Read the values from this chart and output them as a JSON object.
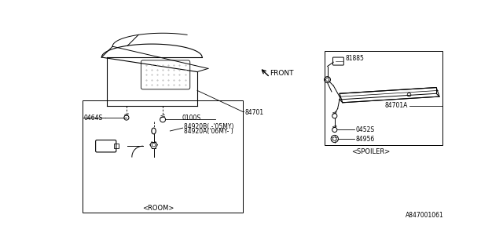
{
  "bg_color": "#ffffff",
  "line_color": "#000000",
  "fig_width": 6.4,
  "fig_height": 3.2,
  "dpi": 100,
  "watermark": "A847001061",
  "labels": {
    "room_section": "<ROOM>",
    "spoiler_section": "<SPOILER>",
    "front_label": "FRONT",
    "part_0464S": "0464S",
    "part_0100S": "0100S",
    "part_84920B": "84920B( -'05MY)",
    "part_84920A": "84920A('06MY- )",
    "part_84701": "84701",
    "part_84701A": "84701A",
    "part_81885": "81885",
    "part_0452S": "0452S",
    "part_84956": "84956"
  },
  "font_size_labels": 5.5,
  "font_size_section": 6.0,
  "font_size_watermark": 5.5
}
